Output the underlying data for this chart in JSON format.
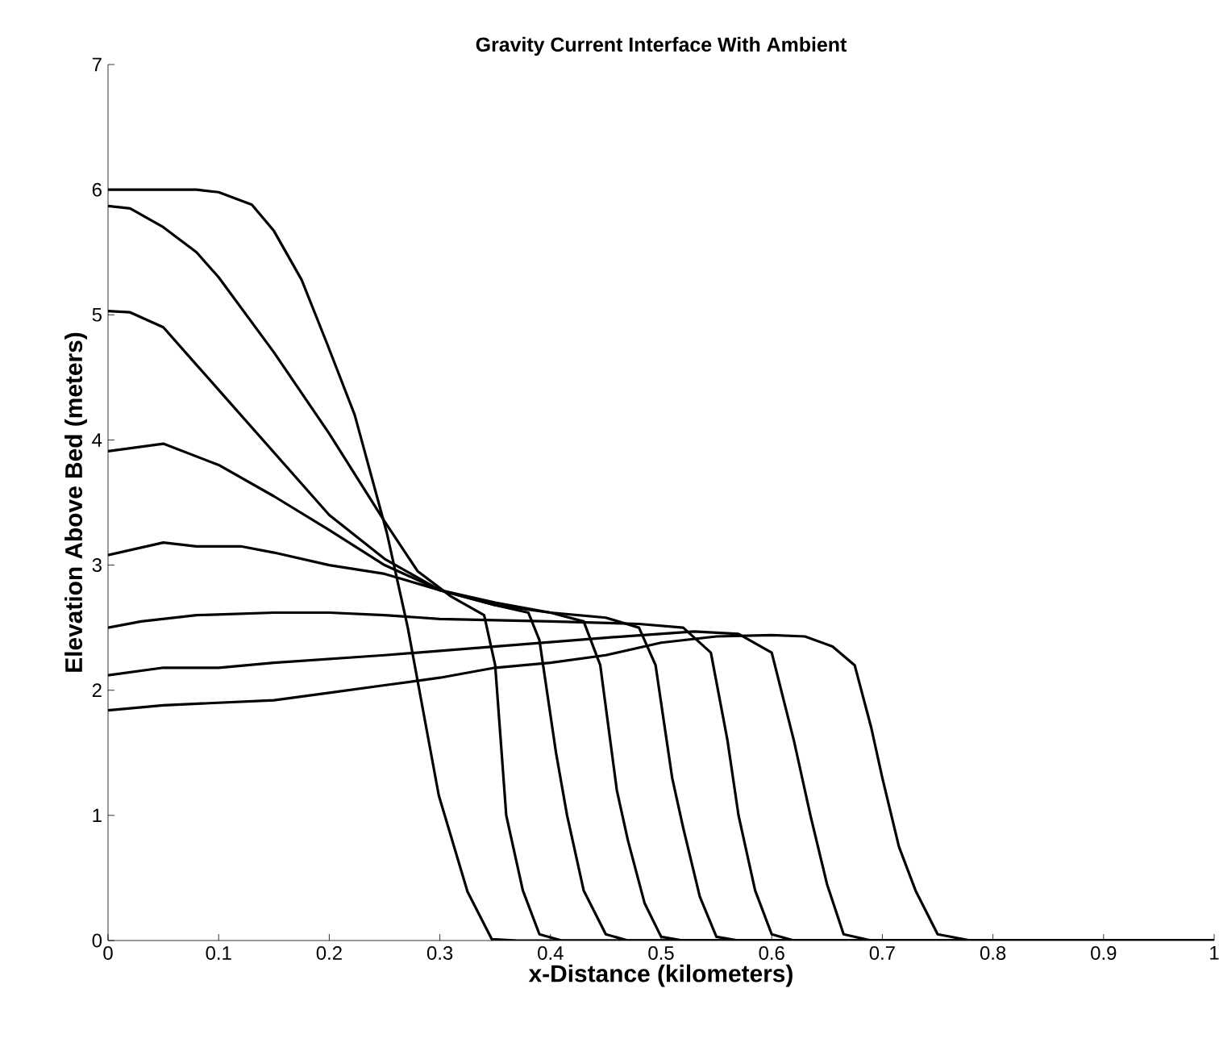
{
  "chart_data": {
    "type": "line",
    "title": "Gravity Current Interface With Ambient",
    "xlabel": "x-Distance (kilometers)",
    "ylabel": "Elevation Above Bed (meters)",
    "xlim": [
      0,
      1
    ],
    "ylim": [
      0,
      7
    ],
    "xticks": [
      0,
      0.1,
      0.2,
      0.3,
      0.4,
      0.5,
      0.6,
      0.7,
      0.8,
      0.9,
      1
    ],
    "yticks": [
      0,
      1,
      2,
      3,
      4,
      5,
      6,
      7
    ],
    "grid": false,
    "marker": "none",
    "line_style": "solid",
    "series": [
      {
        "color": "#000000",
        "x": [
          0,
          0.08,
          0.1,
          0.13,
          0.15,
          0.175,
          0.198,
          0.223,
          0.252,
          0.271,
          0.299,
          0.325,
          0.347,
          0.37,
          1
        ],
        "values": [
          6.0,
          6.0,
          5.98,
          5.88,
          5.67,
          5.28,
          4.77,
          4.2,
          3.26,
          2.5,
          1.16,
          0.39,
          0.01,
          0,
          0
        ]
      },
      {
        "color": "#000000",
        "x": [
          0,
          0.02,
          0.05,
          0.08,
          0.1,
          0.15,
          0.2,
          0.25,
          0.28,
          0.31,
          0.34,
          0.35,
          0.36,
          0.375,
          0.39,
          0.41,
          1
        ],
        "values": [
          5.87,
          5.85,
          5.7,
          5.5,
          5.3,
          4.7,
          4.05,
          3.35,
          2.95,
          2.75,
          2.6,
          2.2,
          1.0,
          0.4,
          0.05,
          0,
          0
        ]
      },
      {
        "color": "#000000",
        "x": [
          0,
          0.02,
          0.05,
          0.08,
          0.1,
          0.15,
          0.2,
          0.25,
          0.3,
          0.35,
          0.38,
          0.39,
          0.405,
          0.415,
          0.43,
          0.45,
          0.47,
          1
        ],
        "values": [
          5.03,
          5.02,
          4.9,
          4.6,
          4.4,
          3.9,
          3.4,
          3.05,
          2.8,
          2.68,
          2.62,
          2.4,
          1.5,
          1.0,
          0.4,
          0.05,
          0,
          0
        ]
      },
      {
        "color": "#000000",
        "x": [
          0,
          0.05,
          0.1,
          0.15,
          0.2,
          0.25,
          0.3,
          0.35,
          0.4,
          0.43,
          0.445,
          0.46,
          0.47,
          0.485,
          0.5,
          0.52,
          1
        ],
        "values": [
          3.91,
          3.97,
          3.8,
          3.55,
          3.28,
          3.0,
          2.8,
          2.68,
          2.62,
          2.55,
          2.2,
          1.2,
          0.8,
          0.3,
          0.03,
          0,
          0
        ]
      },
      {
        "color": "#000000",
        "x": [
          0,
          0.05,
          0.08,
          0.12,
          0.15,
          0.2,
          0.25,
          0.3,
          0.35,
          0.4,
          0.45,
          0.48,
          0.495,
          0.51,
          0.52,
          0.535,
          0.55,
          0.57,
          1
        ],
        "values": [
          3.08,
          3.18,
          3.15,
          3.15,
          3.1,
          3.0,
          2.93,
          2.8,
          2.7,
          2.62,
          2.58,
          2.5,
          2.2,
          1.3,
          0.9,
          0.35,
          0.03,
          0,
          0
        ]
      },
      {
        "color": "#000000",
        "x": [
          0,
          0.03,
          0.08,
          0.15,
          0.2,
          0.25,
          0.3,
          0.4,
          0.48,
          0.52,
          0.545,
          0.56,
          0.57,
          0.585,
          0.6,
          0.62,
          1
        ],
        "values": [
          2.5,
          2.55,
          2.6,
          2.62,
          2.62,
          2.6,
          2.57,
          2.55,
          2.53,
          2.5,
          2.3,
          1.6,
          1.0,
          0.4,
          0.05,
          0,
          0
        ]
      },
      {
        "color": "#000000",
        "x": [
          0,
          0.05,
          0.1,
          0.15,
          0.25,
          0.35,
          0.45,
          0.53,
          0.57,
          0.6,
          0.62,
          0.635,
          0.65,
          0.665,
          0.69,
          1
        ],
        "values": [
          2.12,
          2.18,
          2.18,
          2.22,
          2.28,
          2.35,
          2.42,
          2.47,
          2.45,
          2.3,
          1.6,
          1.0,
          0.45,
          0.05,
          0,
          0
        ]
      },
      {
        "color": "#000000",
        "x": [
          0,
          0.05,
          0.1,
          0.15,
          0.2,
          0.25,
          0.3,
          0.35,
          0.4,
          0.45,
          0.5,
          0.55,
          0.6,
          0.63,
          0.655,
          0.675,
          0.69,
          0.7,
          0.715,
          0.73,
          0.75,
          0.78,
          1
        ],
        "values": [
          1.84,
          1.88,
          1.9,
          1.92,
          1.98,
          2.04,
          2.1,
          2.18,
          2.22,
          2.28,
          2.38,
          2.43,
          2.44,
          2.43,
          2.35,
          2.2,
          1.7,
          1.3,
          0.75,
          0.4,
          0.05,
          0,
          0
        ]
      }
    ]
  }
}
